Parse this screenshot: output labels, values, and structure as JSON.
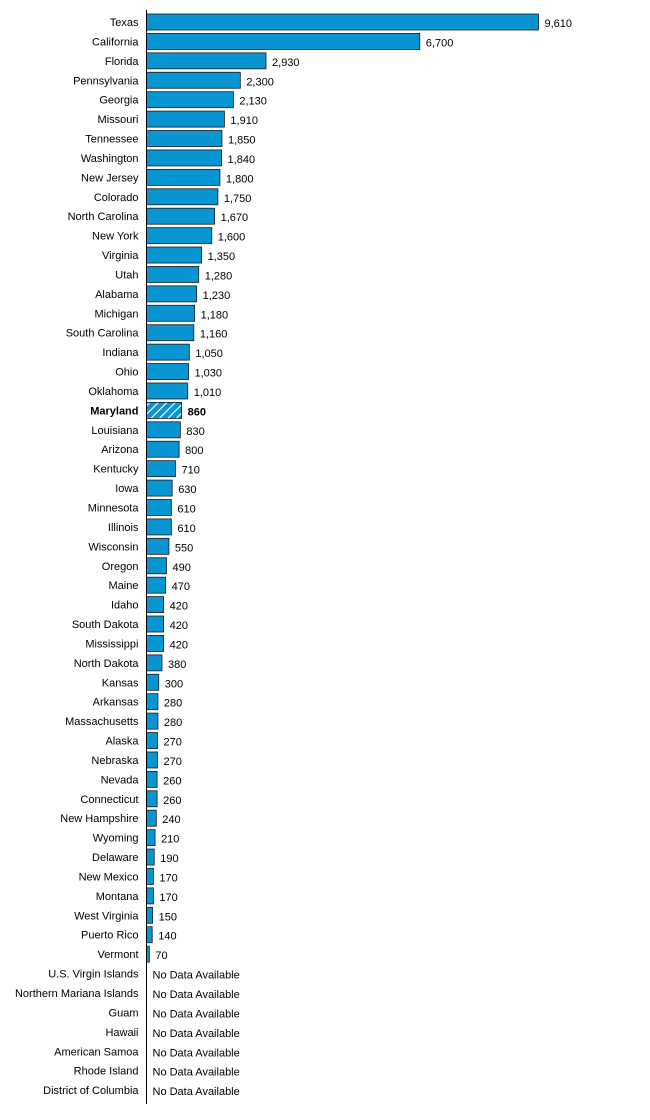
{
  "chart_data": {
    "type": "bar",
    "orientation": "horizontal",
    "title": "",
    "xlabel": "",
    "ylabel": "",
    "bar_color": "#0895d2",
    "highlight_category": "Maryland",
    "highlight_pattern": "diagonal-hatch",
    "xlim": [
      0,
      9610
    ],
    "grid": false,
    "categories": [
      "Texas",
      "California",
      "Florida",
      "Pennsylvania",
      "Georgia",
      "Missouri",
      "Tennessee",
      "Washington",
      "New Jersey",
      "Colorado",
      "North Carolina",
      "New York",
      "Virginia",
      "Utah",
      "Alabama",
      "Michigan",
      "South Carolina",
      "Indiana",
      "Ohio",
      "Oklahoma",
      "Maryland",
      "Louisiana",
      "Arizona",
      "Kentucky",
      "Iowa",
      "Minnesota",
      "Illinois",
      "Wisconsin",
      "Oregon",
      "Maine",
      "Idaho",
      "South Dakota",
      "Mississippi",
      "North Dakota",
      "Kansas",
      "Arkansas",
      "Massachusetts",
      "Alaska",
      "Nebraska",
      "Nevada",
      "Connecticut",
      "New Hampshire",
      "Wyoming",
      "Delaware",
      "New Mexico",
      "Montana",
      "West Virginia",
      "Puerto Rico",
      "Vermont",
      "U.S. Virgin Islands",
      "Northern Mariana Islands",
      "Guam",
      "Hawaii",
      "American Samoa",
      "Rhode Island",
      "District of Columbia"
    ],
    "values": [
      9610,
      6700,
      2930,
      2300,
      2130,
      1910,
      1850,
      1840,
      1800,
      1750,
      1670,
      1600,
      1350,
      1280,
      1230,
      1180,
      1160,
      1050,
      1030,
      1010,
      860,
      830,
      800,
      710,
      630,
      610,
      610,
      550,
      490,
      470,
      420,
      420,
      420,
      380,
      300,
      280,
      280,
      270,
      270,
      260,
      260,
      240,
      210,
      190,
      170,
      170,
      150,
      140,
      70,
      null,
      null,
      null,
      null,
      null,
      null,
      null
    ],
    "value_labels": [
      "9,610",
      "6,700",
      "2,930",
      "2,300",
      "2,130",
      "1,910",
      "1,850",
      "1,840",
      "1,800",
      "1,750",
      "1,670",
      "1,600",
      "1,350",
      "1,280",
      "1,230",
      "1,180",
      "1,160",
      "1,050",
      "1,030",
      "1,010",
      "860",
      "830",
      "800",
      "710",
      "630",
      "610",
      "610",
      "550",
      "490",
      "470",
      "420",
      "420",
      "420",
      "380",
      "300",
      "280",
      "280",
      "270",
      "270",
      "260",
      "260",
      "240",
      "210",
      "190",
      "170",
      "170",
      "150",
      "140",
      "70",
      "No Data Available",
      "No Data Available",
      "No Data Available",
      "No Data Available",
      "No Data Available",
      "No Data Available",
      "No Data Available"
    ]
  }
}
